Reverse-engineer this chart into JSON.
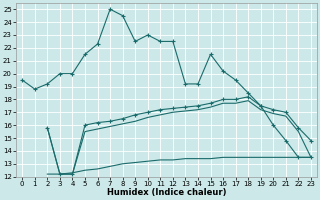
{
  "xlabel": "Humidex (Indice chaleur)",
  "xlim": [
    -0.5,
    23.5
  ],
  "ylim": [
    12,
    25.5
  ],
  "yticks": [
    12,
    13,
    14,
    15,
    16,
    17,
    18,
    19,
    20,
    21,
    22,
    23,
    24,
    25
  ],
  "xticks": [
    0,
    1,
    2,
    3,
    4,
    5,
    6,
    7,
    8,
    9,
    10,
    11,
    12,
    13,
    14,
    15,
    16,
    17,
    18,
    19,
    20,
    21,
    22,
    23
  ],
  "bg_color": "#cce8e8",
  "grid_color": "#ffffff",
  "line_color": "#1a6b6b",
  "curve1_x": [
    0,
    1,
    2,
    3,
    4,
    5,
    6,
    7,
    8,
    9,
    10,
    11,
    12,
    13,
    14,
    15,
    16,
    17,
    18,
    19,
    20,
    21,
    22,
    23
  ],
  "curve1_y": [
    19.5,
    18.8,
    19.2,
    20.0,
    20.0,
    21.5,
    22.3,
    25.0,
    24.5,
    22.5,
    23.0,
    22.5,
    22.5,
    19.2,
    19.2,
    21.5,
    20.2,
    19.5,
    18.5,
    17.5,
    16.0,
    14.8,
    13.5,
    13.5
  ],
  "curve2_x": [
    2,
    3,
    4,
    5,
    6,
    7,
    8,
    9,
    10,
    11,
    12,
    13,
    14,
    15,
    16,
    17,
    18,
    19,
    20,
    21,
    22,
    23
  ],
  "curve2_y": [
    15.8,
    12.2,
    12.2,
    16.0,
    16.2,
    16.3,
    16.5,
    16.8,
    17.0,
    17.2,
    17.3,
    17.4,
    17.5,
    17.7,
    18.0,
    18.0,
    18.2,
    17.5,
    17.2,
    17.0,
    15.8,
    14.8
  ],
  "curve3_x": [
    2,
    3,
    4,
    5,
    6,
    7,
    8,
    9,
    10,
    11,
    12,
    13,
    14,
    15,
    16,
    17,
    18,
    19,
    20,
    21,
    22,
    23
  ],
  "curve3_y": [
    15.8,
    12.2,
    12.2,
    15.5,
    15.7,
    15.9,
    16.1,
    16.3,
    16.6,
    16.8,
    17.0,
    17.1,
    17.2,
    17.4,
    17.7,
    17.7,
    17.9,
    17.2,
    16.9,
    16.7,
    15.5,
    13.5
  ],
  "curve4_x": [
    2,
    3,
    4,
    5,
    6,
    7,
    8,
    9,
    10,
    11,
    12,
    13,
    14,
    15,
    16,
    17,
    18,
    19,
    20,
    21,
    22,
    23
  ],
  "curve4_y": [
    12.2,
    12.2,
    12.3,
    12.5,
    12.6,
    12.8,
    13.0,
    13.1,
    13.2,
    13.3,
    13.3,
    13.4,
    13.4,
    13.4,
    13.5,
    13.5,
    13.5,
    13.5,
    13.5,
    13.5,
    13.5,
    13.5
  ]
}
